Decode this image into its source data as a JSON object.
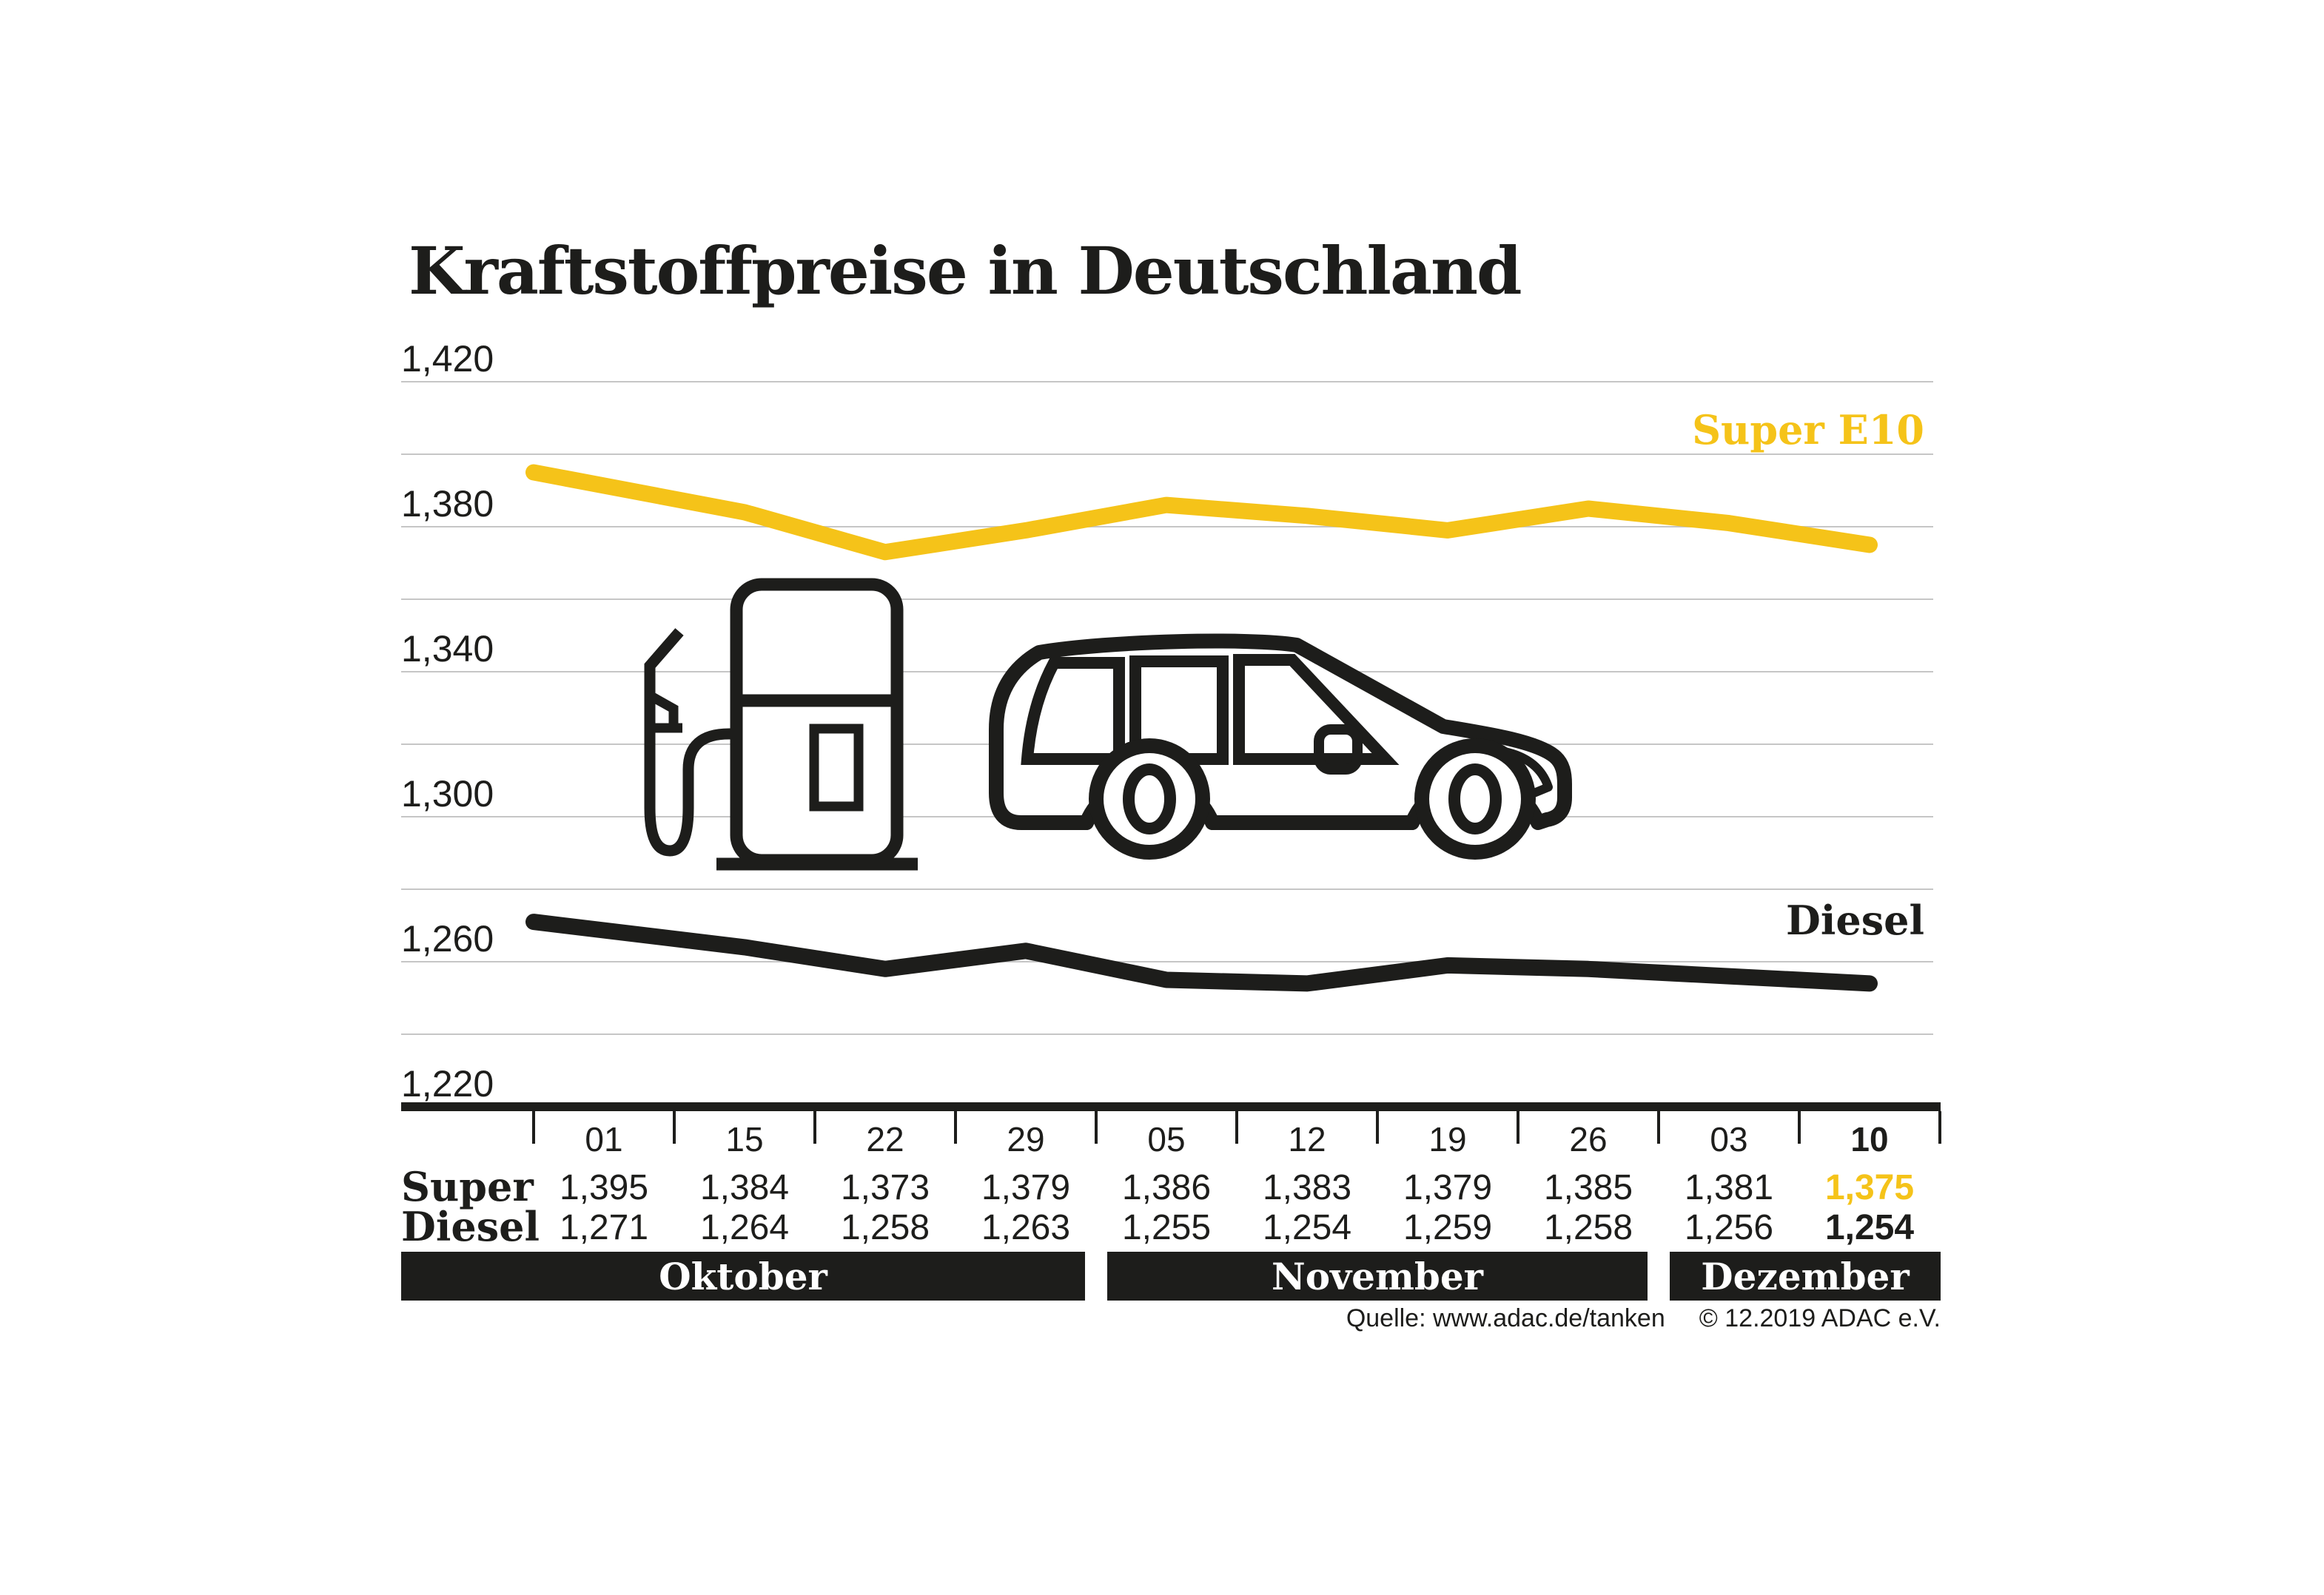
{
  "title": "Kraftstoffpreise in Deutschland",
  "source": {
    "label": "Quelle: www.adac.de/tanken",
    "copyright": "© 12.2019  ADAC e.V."
  },
  "colors": {
    "accent_yellow": "#F5C319",
    "ink_black": "#1D1D1B",
    "gridline_gray": "#C6C6C6"
  },
  "chart_data": {
    "type": "line",
    "title": "Kraftstoffpreise in Deutschland",
    "categories": [
      "01",
      "15",
      "22",
      "29",
      "05",
      "12",
      "19",
      "26",
      "03",
      "10"
    ],
    "series": [
      {
        "name": "Super E10",
        "table_label": "Super",
        "color": "#F5C319",
        "values_eur_per_liter": [
          1.395,
          1.384,
          1.373,
          1.379,
          1.386,
          1.383,
          1.379,
          1.385,
          1.381,
          1.375
        ]
      },
      {
        "name": "Diesel",
        "table_label": "Diesel",
        "color": "#1D1D1B",
        "values_eur_per_liter": [
          1.271,
          1.264,
          1.258,
          1.263,
          1.255,
          1.254,
          1.259,
          1.258,
          1.256,
          1.254
        ]
      }
    ],
    "ylim": [
      1.22,
      1.42
    ],
    "ytick_step": 0.02,
    "ylabel_every": 0.04,
    "ytick_labels": [
      "1,420",
      "1,380",
      "1,340",
      "1,300",
      "1,260",
      "1,220"
    ],
    "grid": true,
    "legend_position": "inline-right",
    "emphasized_last_column": true,
    "months": [
      {
        "label": "Oktober",
        "col_span": [
          0,
          4
        ]
      },
      {
        "label": "November",
        "col_span": [
          4,
          8
        ]
      },
      {
        "label": "Dezember",
        "col_span": [
          8,
          10
        ]
      }
    ]
  }
}
